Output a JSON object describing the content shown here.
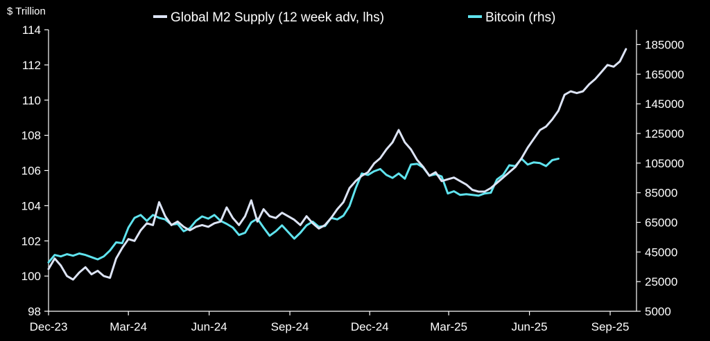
{
  "chart_data": {
    "type": "line",
    "title": "",
    "y_left_label": "$ Trillion",
    "x_ticks": [
      "Dec-23",
      "Mar-24",
      "Jun-24",
      "Sep-24",
      "Dec-24",
      "Mar-25",
      "Jun-25",
      "Sep-25"
    ],
    "y_left": {
      "min": 98,
      "max": 114,
      "ticks": [
        "98",
        "100",
        "102",
        "104",
        "106",
        "108",
        "110",
        "112",
        "114"
      ]
    },
    "y_right": {
      "min": 5000,
      "max": 195000,
      "ticks": [
        "5000",
        "25000",
        "45000",
        "65000",
        "85000",
        "105000",
        "125000",
        "145000",
        "165000",
        "185000"
      ]
    },
    "legend_position": "top",
    "grid": false,
    "series": [
      {
        "name": "Global M2 Supply (12 week adv, lhs)",
        "axis": "left",
        "color": "#dde4f5",
        "points": [
          [
            "2023-12-01",
            100.4
          ],
          [
            "2023-12-08",
            101.0
          ],
          [
            "2023-12-15",
            100.6
          ],
          [
            "2023-12-22",
            100.0
          ],
          [
            "2023-12-29",
            99.8
          ],
          [
            "2024-01-05",
            100.2
          ],
          [
            "2024-01-12",
            100.5
          ],
          [
            "2024-01-19",
            100.1
          ],
          [
            "2024-01-26",
            100.3
          ],
          [
            "2024-02-02",
            100.0
          ],
          [
            "2024-02-09",
            99.9
          ],
          [
            "2024-02-16",
            101.0
          ],
          [
            "2024-02-23",
            101.6
          ],
          [
            "2024-03-01",
            102.1
          ],
          [
            "2024-03-08",
            102.0
          ],
          [
            "2024-03-15",
            102.6
          ],
          [
            "2024-03-22",
            103.0
          ],
          [
            "2024-03-29",
            102.9
          ],
          [
            "2024-04-05",
            104.2
          ],
          [
            "2024-04-12",
            103.4
          ],
          [
            "2024-04-19",
            102.9
          ],
          [
            "2024-04-26",
            103.1
          ],
          [
            "2024-05-03",
            102.8
          ],
          [
            "2024-05-10",
            102.6
          ],
          [
            "2024-05-17",
            102.8
          ],
          [
            "2024-05-24",
            102.9
          ],
          [
            "2024-05-31",
            102.8
          ],
          [
            "2024-06-07",
            103.0
          ],
          [
            "2024-06-14",
            103.1
          ],
          [
            "2024-06-21",
            103.9
          ],
          [
            "2024-06-28",
            103.3
          ],
          [
            "2024-07-05",
            102.9
          ],
          [
            "2024-07-12",
            103.4
          ],
          [
            "2024-07-19",
            104.3
          ],
          [
            "2024-07-26",
            103.1
          ],
          [
            "2024-08-02",
            103.8
          ],
          [
            "2024-08-09",
            103.4
          ],
          [
            "2024-08-16",
            103.3
          ],
          [
            "2024-08-23",
            103.6
          ],
          [
            "2024-08-30",
            103.4
          ],
          [
            "2024-09-06",
            103.2
          ],
          [
            "2024-09-13",
            102.9
          ],
          [
            "2024-09-20",
            103.4
          ],
          [
            "2024-09-27",
            103.0
          ],
          [
            "2024-10-04",
            102.7
          ],
          [
            "2024-10-11",
            102.9
          ],
          [
            "2024-10-18",
            103.3
          ],
          [
            "2024-10-25",
            103.8
          ],
          [
            "2024-11-01",
            104.2
          ],
          [
            "2024-11-08",
            105.0
          ],
          [
            "2024-11-15",
            105.4
          ],
          [
            "2024-11-22",
            105.7
          ],
          [
            "2024-11-29",
            105.9
          ],
          [
            "2024-12-06",
            106.4
          ],
          [
            "2024-12-13",
            106.7
          ],
          [
            "2024-12-20",
            107.2
          ],
          [
            "2024-12-27",
            107.6
          ],
          [
            "2025-01-03",
            108.3
          ],
          [
            "2025-01-10",
            107.6
          ],
          [
            "2025-01-17",
            107.2
          ],
          [
            "2025-01-24",
            106.6
          ],
          [
            "2025-01-31",
            106.2
          ],
          [
            "2025-02-07",
            105.7
          ],
          [
            "2025-02-14",
            105.9
          ],
          [
            "2025-02-21",
            105.4
          ],
          [
            "2025-02-28",
            105.5
          ],
          [
            "2025-03-07",
            105.6
          ],
          [
            "2025-03-14",
            105.4
          ],
          [
            "2025-03-21",
            105.2
          ],
          [
            "2025-03-28",
            104.9
          ],
          [
            "2025-04-04",
            104.8
          ],
          [
            "2025-04-11",
            104.8
          ],
          [
            "2025-04-18",
            105.0
          ],
          [
            "2025-04-25",
            105.3
          ],
          [
            "2025-05-02",
            105.6
          ],
          [
            "2025-05-09",
            105.9
          ],
          [
            "2025-05-16",
            106.2
          ],
          [
            "2025-05-23",
            106.7
          ],
          [
            "2025-05-30",
            107.3
          ],
          [
            "2025-06-06",
            107.8
          ],
          [
            "2025-06-13",
            108.3
          ],
          [
            "2025-06-20",
            108.5
          ],
          [
            "2025-06-27",
            108.9
          ],
          [
            "2025-07-04",
            109.4
          ],
          [
            "2025-07-11",
            110.3
          ],
          [
            "2025-07-18",
            110.5
          ],
          [
            "2025-07-25",
            110.4
          ],
          [
            "2025-08-01",
            110.5
          ],
          [
            "2025-08-08",
            110.9
          ],
          [
            "2025-08-15",
            111.2
          ],
          [
            "2025-08-22",
            111.6
          ],
          [
            "2025-08-29",
            112.0
          ],
          [
            "2025-09-05",
            111.9
          ],
          [
            "2025-09-12",
            112.2
          ],
          [
            "2025-09-19",
            112.9
          ]
        ]
      },
      {
        "name": "Bitcoin (rhs)",
        "axis": "right",
        "color": "#5fe3ee",
        "points": [
          [
            "2023-12-01",
            38000
          ],
          [
            "2023-12-08",
            43000
          ],
          [
            "2023-12-15",
            42000
          ],
          [
            "2023-12-22",
            43500
          ],
          [
            "2023-12-29",
            42500
          ],
          [
            "2024-01-05",
            44000
          ],
          [
            "2024-01-12",
            43000
          ],
          [
            "2024-01-19",
            41500
          ],
          [
            "2024-01-26",
            40000
          ],
          [
            "2024-02-02",
            42000
          ],
          [
            "2024-02-09",
            46000
          ],
          [
            "2024-02-16",
            51500
          ],
          [
            "2024-02-23",
            51000
          ],
          [
            "2024-03-01",
            61500
          ],
          [
            "2024-03-08",
            68000
          ],
          [
            "2024-03-15",
            70000
          ],
          [
            "2024-03-22",
            66000
          ],
          [
            "2024-03-29",
            70000
          ],
          [
            "2024-04-05",
            68000
          ],
          [
            "2024-04-12",
            67000
          ],
          [
            "2024-04-19",
            63500
          ],
          [
            "2024-04-26",
            64000
          ],
          [
            "2024-05-03",
            59000
          ],
          [
            "2024-05-10",
            61000
          ],
          [
            "2024-05-17",
            66000
          ],
          [
            "2024-05-24",
            69000
          ],
          [
            "2024-05-31",
            67500
          ],
          [
            "2024-06-07",
            70000
          ],
          [
            "2024-06-14",
            66000
          ],
          [
            "2024-06-21",
            64000
          ],
          [
            "2024-06-28",
            61500
          ],
          [
            "2024-07-05",
            56500
          ],
          [
            "2024-07-12",
            58000
          ],
          [
            "2024-07-19",
            65000
          ],
          [
            "2024-07-26",
            67500
          ],
          [
            "2024-08-02",
            61500
          ],
          [
            "2024-08-09",
            56000
          ],
          [
            "2024-08-16",
            59000
          ],
          [
            "2024-08-23",
            63000
          ],
          [
            "2024-08-30",
            58500
          ],
          [
            "2024-09-06",
            54000
          ],
          [
            "2024-09-13",
            58000
          ],
          [
            "2024-09-20",
            63000
          ],
          [
            "2024-09-27",
            65500
          ],
          [
            "2024-10-04",
            62000
          ],
          [
            "2024-10-11",
            62500
          ],
          [
            "2024-10-18",
            68000
          ],
          [
            "2024-10-25",
            67000
          ],
          [
            "2024-11-01",
            69500
          ],
          [
            "2024-11-08",
            76000
          ],
          [
            "2024-11-15",
            88000
          ],
          [
            "2024-11-22",
            98000
          ],
          [
            "2024-11-29",
            97000
          ],
          [
            "2024-12-06",
            99500
          ],
          [
            "2024-12-13",
            101000
          ],
          [
            "2024-12-20",
            97000
          ],
          [
            "2024-12-27",
            95000
          ],
          [
            "2025-01-03",
            98000
          ],
          [
            "2025-01-10",
            94500
          ],
          [
            "2025-01-17",
            104000
          ],
          [
            "2025-01-24",
            104500
          ],
          [
            "2025-01-31",
            102000
          ],
          [
            "2025-02-07",
            96500
          ],
          [
            "2025-02-14",
            97500
          ],
          [
            "2025-02-21",
            96000
          ],
          [
            "2025-02-28",
            84500
          ],
          [
            "2025-03-07",
            86000
          ],
          [
            "2025-03-14",
            83500
          ],
          [
            "2025-03-21",
            84000
          ],
          [
            "2025-03-28",
            83500
          ],
          [
            "2025-04-04",
            83000
          ],
          [
            "2025-04-11",
            84500
          ],
          [
            "2025-04-18",
            85000
          ],
          [
            "2025-04-25",
            94000
          ],
          [
            "2025-05-02",
            97000
          ],
          [
            "2025-05-09",
            103500
          ],
          [
            "2025-05-16",
            103000
          ],
          [
            "2025-05-23",
            108000
          ],
          [
            "2025-05-30",
            104000
          ],
          [
            "2025-06-06",
            105500
          ],
          [
            "2025-06-13",
            105000
          ],
          [
            "2025-06-20",
            103000
          ],
          [
            "2025-06-27",
            107000
          ],
          [
            "2025-07-04",
            108000
          ]
        ]
      }
    ]
  }
}
